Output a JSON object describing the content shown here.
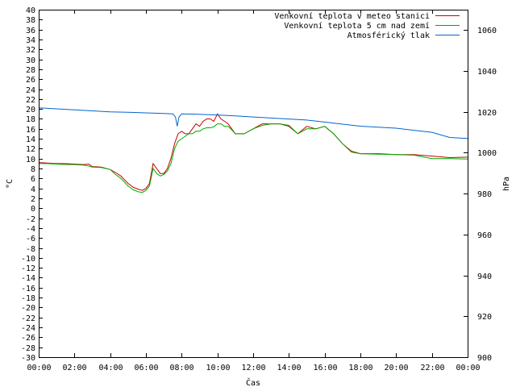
{
  "chart_data": {
    "type": "line",
    "xlabel": "Čas",
    "ylabel_left": "°C",
    "ylabel_right": "hPa",
    "x_ticks": [
      "00:00",
      "02:00",
      "04:00",
      "06:00",
      "08:00",
      "10:00",
      "12:00",
      "14:00",
      "16:00",
      "18:00",
      "20:00",
      "22:00",
      "00:00"
    ],
    "xlim_hours": [
      0,
      24
    ],
    "ylim_left": [
      -30,
      40
    ],
    "left_tick_step": 2,
    "ylim_right": [
      900,
      1070
    ],
    "right_ticks": [
      900,
      920,
      940,
      960,
      980,
      1000,
      1020,
      1040,
      1060
    ],
    "legend_position": "top-right",
    "series": [
      {
        "name": "Venkovní teplota v meteo stanici",
        "axis": "left",
        "color": "#cc0000",
        "x": [
          0,
          0.5,
          1,
          1.5,
          2,
          2.5,
          2.8,
          3,
          3.5,
          4,
          4.3,
          4.6,
          5,
          5.3,
          5.6,
          5.8,
          6,
          6.2,
          6.4,
          6.6,
          6.8,
          7,
          7.2,
          7.4,
          7.6,
          7.8,
          8,
          8.2,
          8.4,
          8.6,
          8.8,
          9,
          9.2,
          9.4,
          9.6,
          9.8,
          10,
          10.2,
          10.4,
          10.6,
          10.8,
          11,
          11.5,
          12,
          12.5,
          13,
          13.5,
          14,
          14.5,
          15,
          15.5,
          16,
          16.5,
          17,
          17.5,
          18,
          19,
          20,
          21,
          22,
          23,
          24
        ],
        "y": [
          9.2,
          9.1,
          9,
          9,
          8.9,
          8.8,
          8.9,
          8.4,
          8.3,
          7.8,
          7.2,
          6.5,
          5,
          4.2,
          3.8,
          3.6,
          4,
          5,
          9,
          8,
          7,
          7,
          8,
          10,
          13,
          15,
          15.5,
          15,
          15,
          16,
          17,
          16.5,
          17.5,
          18,
          18,
          17.5,
          19,
          18,
          17.5,
          17,
          16,
          15,
          15,
          16,
          17,
          17,
          17,
          16.5,
          15,
          16.5,
          16,
          16.5,
          15,
          13,
          11.5,
          11,
          11,
          10.8,
          10.8,
          10.5,
          10.2,
          10.3
        ]
      },
      {
        "name": "Venkovní teplota 5 cm nad zemí",
        "axis": "left",
        "color": "#00aa00",
        "x": [
          0,
          0.5,
          1,
          1.5,
          2,
          2.5,
          2.8,
          3,
          3.5,
          4,
          4.3,
          4.6,
          5,
          5.3,
          5.6,
          5.8,
          6,
          6.2,
          6.4,
          6.6,
          6.8,
          7,
          7.2,
          7.4,
          7.6,
          7.8,
          8,
          8.2,
          8.4,
          8.6,
          8.8,
          9,
          9.2,
          9.4,
          9.6,
          9.8,
          10,
          10.2,
          10.4,
          10.6,
          10.8,
          11,
          11.5,
          12,
          12.5,
          13,
          13.5,
          14,
          14.5,
          15,
          15.5,
          16,
          16.5,
          17,
          17.5,
          18,
          19,
          20,
          21,
          22,
          23,
          24
        ],
        "y": [
          9,
          9,
          8.9,
          8.8,
          8.8,
          8.7,
          8.5,
          8.3,
          8.2,
          7.8,
          6.8,
          6,
          4.5,
          3.7,
          3.3,
          3.2,
          3.6,
          4.5,
          8,
          7,
          6.5,
          6.8,
          7.5,
          9,
          12,
          13.5,
          14,
          14.5,
          15,
          15,
          15.5,
          15.5,
          16,
          16.2,
          16.2,
          16.4,
          17,
          17,
          16.5,
          16.5,
          15.8,
          15,
          15,
          16,
          16.7,
          17,
          17,
          16.7,
          15,
          16,
          16,
          16.5,
          15,
          13,
          11.3,
          11,
          10.9,
          10.8,
          10.7,
          10,
          10,
          9.9
        ]
      },
      {
        "name": "Atmosférický tlak",
        "axis": "right",
        "color": "#0066cc",
        "x": [
          0,
          1,
          2,
          3,
          4,
          5,
          6,
          7,
          7.5,
          7.65,
          7.75,
          7.85,
          8,
          9,
          10,
          11,
          12,
          13,
          14,
          15,
          16,
          17,
          18,
          19,
          20,
          21,
          22,
          23,
          24
        ],
        "y": [
          1022,
          1021.5,
          1021,
          1020.5,
          1020,
          1019.8,
          1019.5,
          1019.2,
          1019,
          1017.5,
          1013,
          1017.5,
          1019,
          1018.8,
          1018.5,
          1018,
          1017.5,
          1017,
          1016.5,
          1016,
          1015,
          1014,
          1013,
          1012.5,
          1012,
          1011,
          1010,
          1007.5,
          1007
        ]
      }
    ]
  }
}
